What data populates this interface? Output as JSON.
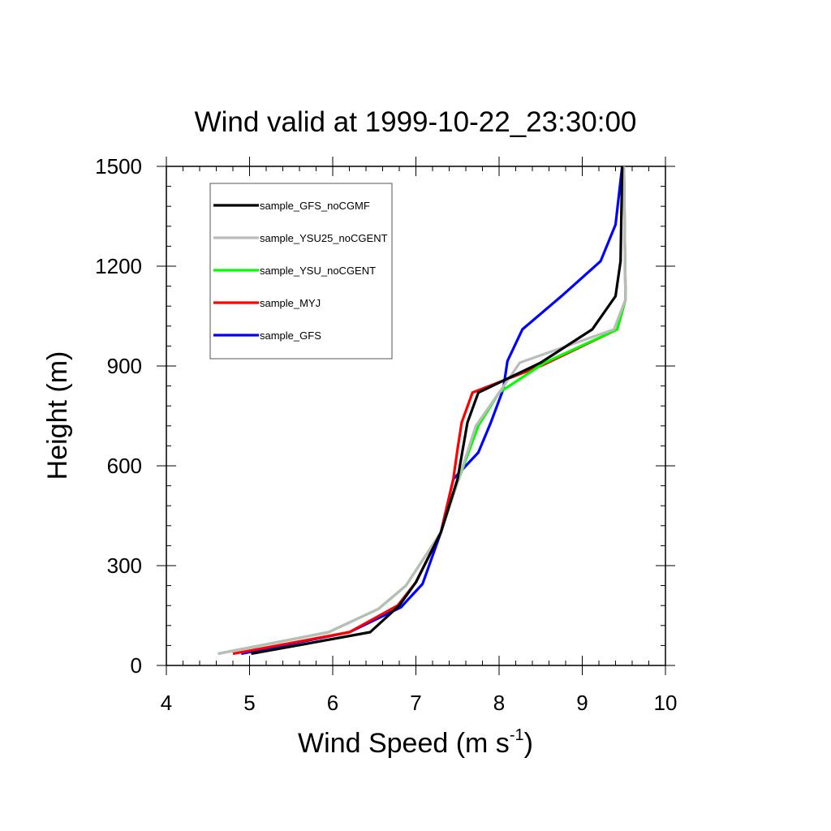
{
  "chart_data": {
    "type": "line",
    "title": "Wind valid at 1999-10-22_23:30:00",
    "xlabel": "Wind Speed (m s",
    "xlabel_sup": "-1",
    "xlabel_close": ")",
    "ylabel": "Height (m)",
    "xlim": [
      4,
      10
    ],
    "ylim": [
      0,
      1500
    ],
    "x_ticks": [
      4,
      5,
      6,
      7,
      8,
      9,
      10
    ],
    "y_ticks": [
      0,
      300,
      600,
      900,
      1200,
      1500
    ],
    "grid": false,
    "legend_position": "top-left",
    "series": [
      {
        "name": "sample_GFS_noCGMF",
        "color": "#000000",
        "points": [
          [
            5.02,
            35
          ],
          [
            6.45,
            100
          ],
          [
            6.8,
            180
          ],
          [
            7.0,
            250
          ],
          [
            7.3,
            400
          ],
          [
            7.5,
            560
          ],
          [
            7.62,
            730
          ],
          [
            7.75,
            820
          ],
          [
            8.5,
            910
          ],
          [
            9.12,
            1010
          ],
          [
            9.4,
            1110
          ],
          [
            9.46,
            1215
          ],
          [
            9.48,
            1500
          ]
        ]
      },
      {
        "name": "sample_YSU25_noCGENT",
        "color": "#bbbbbb",
        "points": [
          [
            4.62,
            35
          ],
          [
            5.95,
            100
          ],
          [
            6.55,
            170
          ],
          [
            6.88,
            240
          ],
          [
            7.3,
            400
          ],
          [
            7.5,
            550
          ],
          [
            7.72,
            720
          ],
          [
            8.0,
            820
          ],
          [
            8.25,
            910
          ],
          [
            9.38,
            1010
          ],
          [
            9.52,
            1100
          ],
          [
            9.5,
            1500
          ]
        ]
      },
      {
        "name": "sample_YSU_noCGENT",
        "color": "#00ff00",
        "points": [
          [
            4.62,
            35
          ],
          [
            5.95,
            100
          ],
          [
            6.55,
            170
          ],
          [
            6.88,
            240
          ],
          [
            7.3,
            400
          ],
          [
            7.5,
            550
          ],
          [
            7.75,
            720
          ],
          [
            8.0,
            820
          ],
          [
            8.55,
            910
          ],
          [
            9.42,
            1010
          ],
          [
            9.52,
            1100
          ],
          [
            9.5,
            1500
          ]
        ]
      },
      {
        "name": "sample_MYJ",
        "color": "#ff0000",
        "points": [
          [
            4.8,
            35
          ],
          [
            6.2,
            100
          ],
          [
            6.78,
            180
          ],
          [
            7.0,
            250
          ],
          [
            7.3,
            400
          ],
          [
            7.45,
            560
          ],
          [
            7.5,
            650
          ],
          [
            7.55,
            730
          ],
          [
            7.68,
            820
          ],
          [
            8.5,
            900
          ],
          [
            9.42,
            1010
          ],
          [
            9.52,
            1100
          ],
          [
            9.5,
            1500
          ]
        ]
      },
      {
        "name": "sample_GFS",
        "color": "#0000ff",
        "points": [
          [
            4.9,
            35
          ],
          [
            6.2,
            100
          ],
          [
            6.82,
            175
          ],
          [
            7.08,
            245
          ],
          [
            7.3,
            400
          ],
          [
            7.45,
            560
          ],
          [
            7.75,
            640
          ],
          [
            7.9,
            730
          ],
          [
            8.05,
            830
          ],
          [
            8.1,
            915
          ],
          [
            8.28,
            1010
          ],
          [
            8.75,
            1110
          ],
          [
            9.22,
            1215
          ],
          [
            9.4,
            1325
          ],
          [
            9.48,
            1500
          ]
        ]
      }
    ]
  }
}
